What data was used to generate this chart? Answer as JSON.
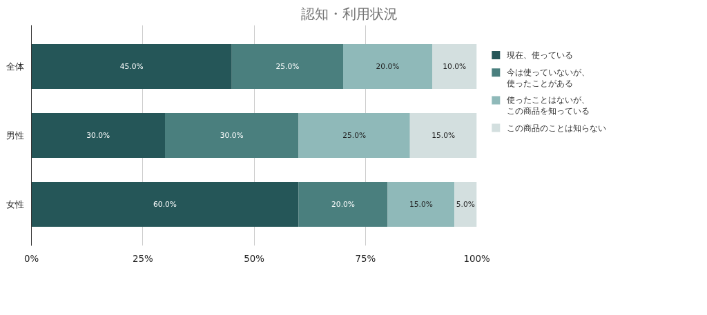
{
  "chart_data": {
    "type": "bar",
    "orientation": "horizontal",
    "stacked": true,
    "title": "認知・利用状況",
    "categories": [
      "全体",
      "男性",
      "女性"
    ],
    "series": [
      {
        "name": "現在、使っている",
        "color": "#255658",
        "values": [
          45,
          30,
          60
        ],
        "value_labels": [
          "45.0%",
          "30.0%",
          "60.0%"
        ]
      },
      {
        "name": "今は使っていないが、使ったことがある",
        "color": "#4a7f7e",
        "values": [
          25,
          30,
          20
        ],
        "value_labels": [
          "25.0%",
          "30.0%",
          "20.0%"
        ]
      },
      {
        "name": "使ったことはないが、この商品を知っている",
        "color": "#8fb9b9",
        "values": [
          20,
          25,
          15
        ],
        "value_labels": [
          "20.0%",
          "25.0%",
          "15.0%"
        ]
      },
      {
        "name": "この商品のことは知らない",
        "color": "#d3dfdf",
        "values": [
          10,
          15,
          5
        ],
        "value_labels": [
          "10.0%",
          "15.0%",
          "5.0%"
        ]
      }
    ],
    "xlim": [
      0,
      100
    ],
    "xticks": [
      {
        "value": 0,
        "label": "0%"
      },
      {
        "value": 25,
        "label": "25%"
      },
      {
        "value": 50,
        "label": "50%"
      },
      {
        "value": 75,
        "label": "75%"
      },
      {
        "value": 100,
        "label": "100%"
      }
    ],
    "grid": "x",
    "legend": "top right"
  }
}
